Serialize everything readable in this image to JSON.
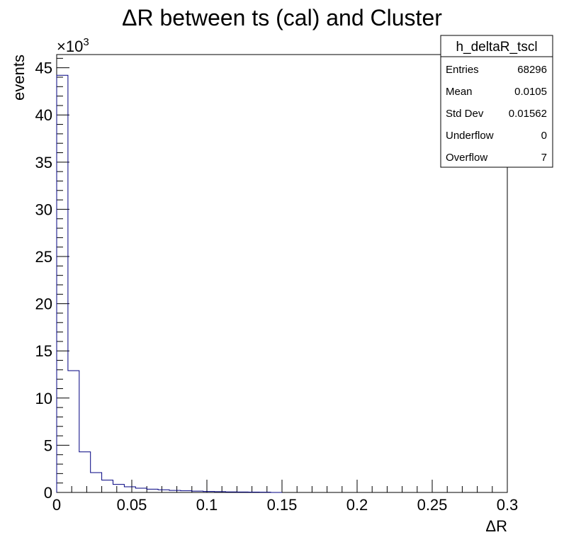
{
  "chart_data": {
    "type": "histogram",
    "title": "ΔR between ts (cal) and Cluster",
    "xlabel": "ΔR",
    "ylabel": "events",
    "y_multiplier_label": "×10",
    "y_multiplier_exponent": "3",
    "xlim": [
      0,
      0.3
    ],
    "ylim": [
      0,
      46.4
    ],
    "bin_width": 0.0075,
    "x_ticks": [
      "0",
      "0.05",
      "0.1",
      "0.15",
      "0.2",
      "0.25",
      "0.3"
    ],
    "y_ticks": [
      "0",
      "5",
      "10",
      "15",
      "20",
      "25",
      "30",
      "35",
      "40",
      "45"
    ],
    "x_bin_edges": [
      0,
      0.0075,
      0.015,
      0.0225,
      0.03,
      0.0375,
      0.045,
      0.0525,
      0.06,
      0.0675,
      0.075,
      0.0825,
      0.09,
      0.0975,
      0.105,
      0.1125,
      0.12,
      0.1275,
      0.135,
      0.1425,
      0.15
    ],
    "values": [
      44.2,
      12.9,
      4.3,
      2.1,
      1.3,
      0.85,
      0.6,
      0.45,
      0.35,
      0.28,
      0.22,
      0.18,
      0.14,
      0.1,
      0.08,
      0.06,
      0.05,
      0.04,
      0.03,
      0.0
    ],
    "line_color": "#000080",
    "grid": false,
    "stats_box": {
      "name": "h_deltaR_tscl",
      "position": "top-right",
      "rows": [
        {
          "label": "Entries",
          "value": "68296"
        },
        {
          "label": "Mean",
          "value": "0.0105"
        },
        {
          "label": "Std Dev",
          "value": "0.01562"
        },
        {
          "label": "Underflow",
          "value": "0"
        },
        {
          "label": "Overflow",
          "value": "7"
        }
      ]
    }
  }
}
